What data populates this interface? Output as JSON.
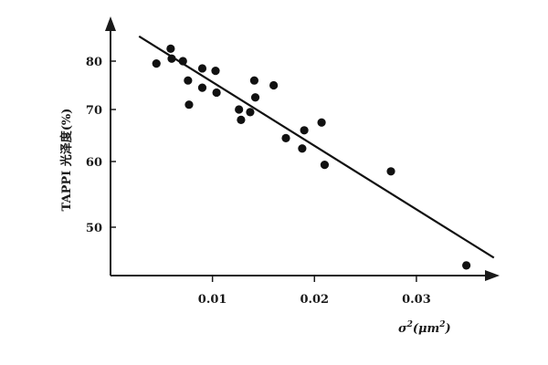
{
  "chart_data": {
    "type": "scatter",
    "title": "",
    "ylabel": "TAPPI 光泽度(%)",
    "xlabel_symbol": "σ",
    "xlabel_power": "2",
    "xlabel_unit_open": "(μm",
    "xlabel_unit_power": "2",
    "xlabel_unit_close": ")",
    "x_ticks": [
      0.01,
      0.02,
      0.03
    ],
    "x_tick_labels": [
      "0.01",
      "0.02",
      "0.03"
    ],
    "y_ticks": [
      50,
      60,
      70,
      80
    ],
    "y_tick_labels": [
      "50",
      "60",
      "70",
      "80"
    ],
    "xlim": [
      0.0,
      0.0378
    ],
    "ylim": [
      40.5,
      89
    ],
    "y_scale": "nonlinear",
    "grid": false,
    "points": [
      {
        "x": 0.0045,
        "y": 79.5
      },
      {
        "x": 0.0059,
        "y": 82.5
      },
      {
        "x": 0.006,
        "y": 80.5
      },
      {
        "x": 0.0071,
        "y": 80.0
      },
      {
        "x": 0.0076,
        "y": 76.0
      },
      {
        "x": 0.0077,
        "y": 71.0
      },
      {
        "x": 0.009,
        "y": 78.5
      },
      {
        "x": 0.009,
        "y": 74.5
      },
      {
        "x": 0.0103,
        "y": 78.0
      },
      {
        "x": 0.0104,
        "y": 73.5
      },
      {
        "x": 0.0126,
        "y": 70.0
      },
      {
        "x": 0.0128,
        "y": 68.0
      },
      {
        "x": 0.0137,
        "y": 69.5
      },
      {
        "x": 0.0141,
        "y": 76.0
      },
      {
        "x": 0.0142,
        "y": 72.5
      },
      {
        "x": 0.016,
        "y": 75.0
      },
      {
        "x": 0.0172,
        "y": 64.5
      },
      {
        "x": 0.0188,
        "y": 62.5
      },
      {
        "x": 0.019,
        "y": 66.0
      },
      {
        "x": 0.0207,
        "y": 67.5
      },
      {
        "x": 0.021,
        "y": 59.5
      },
      {
        "x": 0.0275,
        "y": 58.5
      },
      {
        "x": 0.0349,
        "y": 42.5
      }
    ],
    "trend_line": {
      "x": [
        0.0028,
        0.0376
      ],
      "y": [
        85.0,
        44.0
      ]
    }
  }
}
